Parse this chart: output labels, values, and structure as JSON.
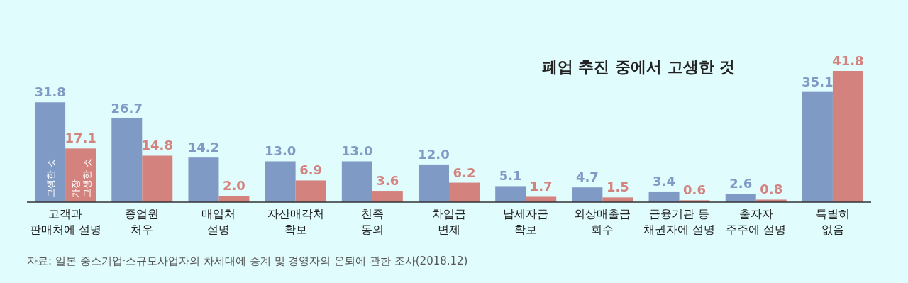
{
  "chart_data": {
    "type": "bar",
    "title": "폐업 추진 중에서 고생한 것",
    "categories": [
      "고객과\n판매처에 설명",
      "종업원\n처우",
      "매입처\n설명",
      "자산매각처\n확보",
      "친족\n동의",
      "차입금\n변제",
      "납세자금\n확보",
      "외상매출금\n회수",
      "금융기관 등\n채권자에 설명",
      "출자자\n주주에 설명",
      "특별히\n없음"
    ],
    "series": [
      {
        "name": "고생한 것",
        "color": "#7f9bc5",
        "values": [
          31.8,
          26.7,
          14.2,
          13.0,
          13.0,
          12.0,
          5.1,
          4.7,
          3.4,
          2.6,
          35.1
        ],
        "value_labels": [
          "31.8",
          "26.7",
          "14.2",
          "13.0",
          "13.0",
          "12.0",
          "5.1",
          "4.7",
          "3.4",
          "2.6",
          "35.1"
        ]
      },
      {
        "name": "가장 고생한 것",
        "color": "#d4827d",
        "values": [
          17.1,
          14.8,
          2.0,
          6.9,
          3.6,
          6.2,
          1.7,
          1.5,
          0.6,
          0.8,
          41.8
        ],
        "value_labels": [
          "17.1",
          "14.8",
          "2.0",
          "6.9",
          "3.6",
          "6.2",
          "1.7",
          "1.5",
          "0.6",
          "0.8",
          "41.8"
        ]
      }
    ],
    "annotations": [
      "자료: 일본 중소기업·소규모사업자의 차세대에 승계 및 경영자의 은퇴에 관한 조사(2018.12)"
    ]
  }
}
